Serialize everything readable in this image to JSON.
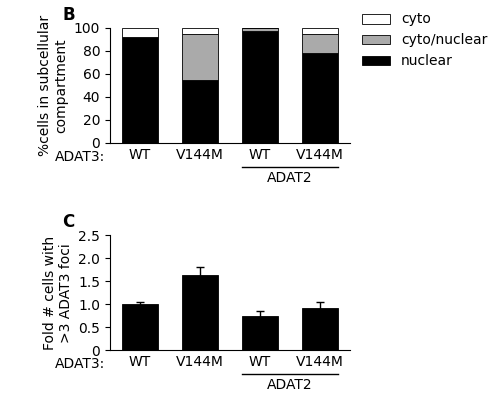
{
  "chart_data": [
    {
      "type": "bar",
      "stacked": true,
      "title": "B",
      "categories": [
        "WT",
        "V144M",
        "WT",
        "V144M"
      ],
      "series": [
        {
          "name": "nuclear",
          "color": "black",
          "values": [
            92,
            55,
            97,
            78
          ]
        },
        {
          "name": "cyto/nuclear",
          "color": "#aaaaaa",
          "values": [
            0,
            40,
            3,
            17
          ]
        },
        {
          "name": "cyto",
          "color": "white",
          "values": [
            8,
            5,
            0,
            5
          ]
        }
      ],
      "y_label": "%cells in subcellular\ncompartment",
      "ylim": [
        0,
        100
      ],
      "yticks": [
        0,
        20,
        40,
        60,
        80,
        100
      ],
      "legend": "upper right",
      "annotations": [
        "ADAT3:",
        "ADAT2"
      ]
    },
    {
      "type": "bar",
      "title": "C",
      "categories": [
        "WT",
        "V144M",
        "WT",
        "V144M"
      ],
      "values": [
        1.0,
        1.63,
        0.75,
        0.92
      ],
      "errors": [
        0.05,
        0.18,
        0.1,
        0.13
      ],
      "color": "black",
      "y_label": "Fold # cells with\n>3 ADAT3 foci",
      "ylim": [
        0,
        2.5
      ],
      "yticks": [
        0,
        0.5,
        {
          "value": 1,
          "label": "1.0"
        },
        1.5,
        {
          "value": 2,
          "label": "2.0"
        },
        2.5
      ],
      "annotations": [
        "ADAT3:",
        "ADAT2"
      ]
    }
  ]
}
